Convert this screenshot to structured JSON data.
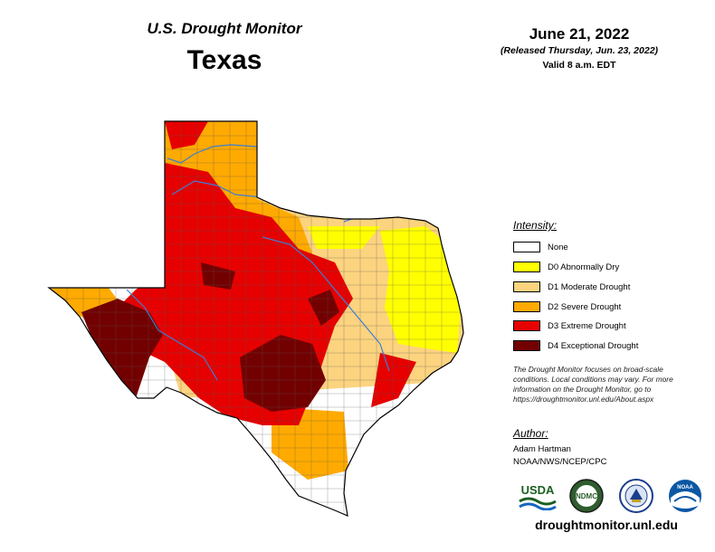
{
  "header": {
    "title": "U.S. Drought Monitor",
    "state": "Texas",
    "date": "June 21, 2022",
    "released": "(Released Thursday, Jun. 23, 2022)",
    "valid": "Valid 8 a.m. EDT"
  },
  "legend": {
    "title": "Intensity:",
    "items": [
      {
        "label": "None",
        "color": "#ffffff"
      },
      {
        "label": "D0 Abnormally Dry",
        "color": "#ffff00"
      },
      {
        "label": "D1 Moderate Drought",
        "color": "#fcd37f"
      },
      {
        "label": "D2 Severe Drought",
        "color": "#ffaa00"
      },
      {
        "label": "D3 Extreme Drought",
        "color": "#e60000"
      },
      {
        "label": "D4 Exceptional Drought",
        "color": "#730000"
      }
    ]
  },
  "note": "The Drought Monitor focuses on broad-scale conditions. Local conditions may vary. For more information on the Drought Monitor, go to https://droughtmonitor.unl.edu/About.aspx",
  "author": {
    "title": "Author:",
    "name": "Adam Hartman",
    "org": "NOAA/NWS/NCEP/CPC"
  },
  "logos": [
    {
      "name": "usda-logo",
      "text": "USDA"
    },
    {
      "name": "ndmc-logo",
      "text": "NDMC"
    },
    {
      "name": "doc-seal-logo",
      "text": ""
    },
    {
      "name": "noaa-logo",
      "text": "NOAA"
    }
  ],
  "footer": {
    "url": "droughtmonitor.unl.edu"
  }
}
